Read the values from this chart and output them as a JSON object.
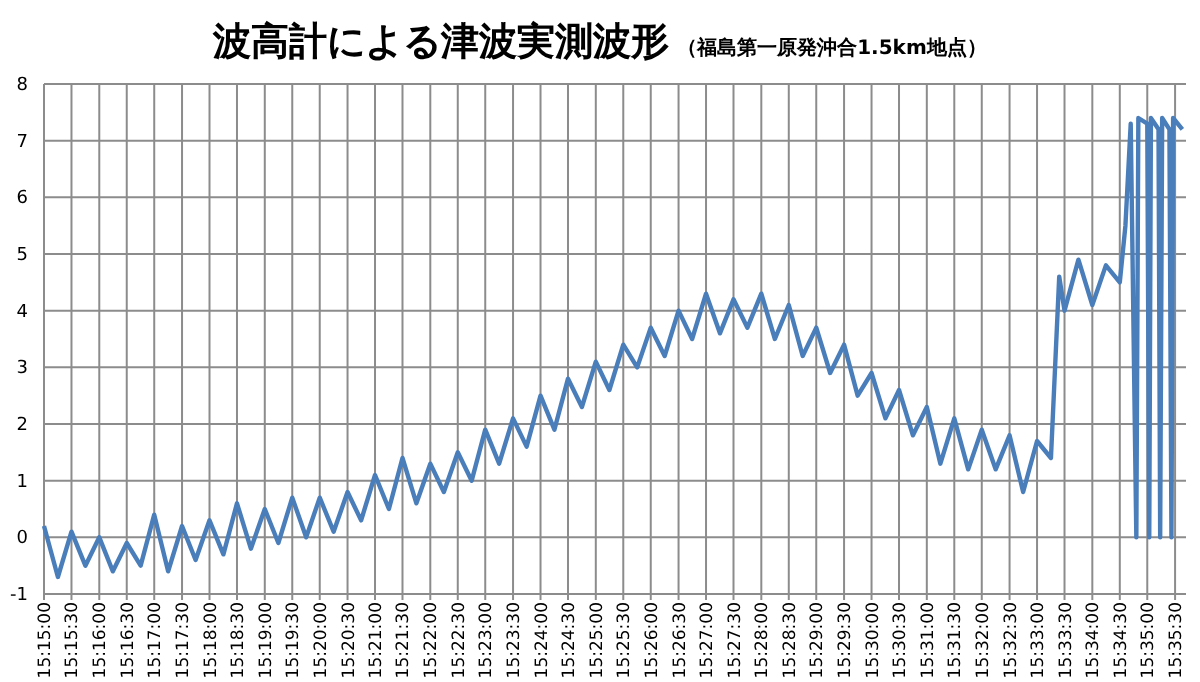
{
  "chart_data": {
    "type": "line",
    "title": "波高計による津波実測波形",
    "subtitle": "（福島第一原発沖合1.5km地点）",
    "x": [
      15.25,
      15.2542,
      15.2583,
      15.2625,
      15.2667,
      15.2708,
      15.275,
      15.2792,
      15.2833,
      15.2875,
      15.2917,
      15.2958,
      15.3,
      15.3042,
      15.3083,
      15.3125,
      15.3167,
      15.3208,
      15.325,
      15.3292,
      15.3333,
      15.3375,
      15.3417,
      15.3458,
      15.35,
      15.3542,
      15.3583,
      15.3625,
      15.3667,
      15.3708,
      15.375,
      15.3792,
      15.3833,
      15.3875,
      15.3917,
      15.3958,
      15.4,
      15.4042,
      15.4083,
      15.4125,
      15.4167,
      15.4208,
      15.425,
      15.4292,
      15.4333,
      15.4375,
      15.4417,
      15.4458,
      15.45,
      15.4542,
      15.4583,
      15.4625,
      15.4667,
      15.4708,
      15.475,
      15.4792,
      15.4833,
      15.4875,
      15.4917,
      15.4958,
      15.5,
      15.5042,
      15.5083,
      15.5125,
      15.5167,
      15.5208,
      15.525,
      15.5292,
      15.5333,
      15.5375,
      15.5417,
      15.5458,
      15.55,
      15.5542,
      15.5567,
      15.5583,
      15.5625,
      15.5667,
      15.5708,
      15.575,
      15.5767,
      15.5783,
      15.58,
      15.5806,
      15.5833,
      15.5839,
      15.5844,
      15.5867,
      15.5872,
      15.5878,
      15.59,
      15.5906,
      15.5911,
      15.5939
    ],
    "series": [
      {
        "color": "#4a7ebb",
        "values": [
          0.2,
          -0.7,
          0.1,
          -0.5,
          0.0,
          -0.6,
          -0.1,
          -0.5,
          0.4,
          -0.6,
          0.2,
          -0.4,
          0.3,
          -0.3,
          0.6,
          -0.2,
          0.5,
          -0.1,
          0.7,
          0.0,
          0.7,
          0.1,
          0.8,
          0.3,
          1.1,
          0.5,
          1.4,
          0.6,
          1.3,
          0.8,
          1.5,
          1.0,
          1.9,
          1.3,
          2.1,
          1.6,
          2.5,
          1.9,
          2.8,
          2.3,
          3.1,
          2.6,
          3.4,
          3.0,
          3.7,
          3.2,
          4.0,
          3.5,
          4.3,
          3.6,
          4.2,
          3.7,
          4.3,
          3.5,
          4.1,
          3.2,
          3.7,
          2.9,
          3.4,
          2.5,
          2.9,
          2.1,
          2.6,
          1.8,
          2.3,
          1.3,
          2.1,
          1.2,
          1.9,
          1.2,
          1.8,
          0.8,
          1.7,
          1.4,
          4.6,
          4.0,
          4.9,
          4.1,
          4.8,
          4.5,
          5.5,
          7.3,
          0,
          7.4,
          7.3,
          0,
          7.4,
          7.2,
          0,
          7.4,
          7.2,
          0,
          7.4,
          7.2
        ]
      }
    ],
    "xlim": [
      15.25,
      15.595
    ],
    "ylim": [
      -1,
      8
    ],
    "yticks": [
      -1,
      0,
      1,
      2,
      3,
      4,
      5,
      6,
      7,
      8
    ],
    "xticks": [
      {
        "value": 15.25,
        "label": "15:15:00"
      },
      {
        "value": 15.2583,
        "label": "15:15:30"
      },
      {
        "value": 15.2667,
        "label": "15:16:00"
      },
      {
        "value": 15.275,
        "label": "15:16:30"
      },
      {
        "value": 15.2833,
        "label": "15:17:00"
      },
      {
        "value": 15.2917,
        "label": "15:17:30"
      },
      {
        "value": 15.3,
        "label": "15:18:00"
      },
      {
        "value": 15.3083,
        "label": "15:18:30"
      },
      {
        "value": 15.3167,
        "label": "15:19:00"
      },
      {
        "value": 15.325,
        "label": "15:19:30"
      },
      {
        "value": 15.3333,
        "label": "15:20:00"
      },
      {
        "value": 15.3417,
        "label": "15:20:30"
      },
      {
        "value": 15.35,
        "label": "15:21:00"
      },
      {
        "value": 15.3583,
        "label": "15:21:30"
      },
      {
        "value": 15.3667,
        "label": "15:22:00"
      },
      {
        "value": 15.375,
        "label": "15:22:30"
      },
      {
        "value": 15.3833,
        "label": "15:23:00"
      },
      {
        "value": 15.3917,
        "label": "15:23:30"
      },
      {
        "value": 15.4,
        "label": "15:24:00"
      },
      {
        "value": 15.4083,
        "label": "15:24:30"
      },
      {
        "value": 15.4167,
        "label": "15:25:00"
      },
      {
        "value": 15.425,
        "label": "15:25:30"
      },
      {
        "value": 15.4333,
        "label": "15:26:00"
      },
      {
        "value": 15.4417,
        "label": "15:26:30"
      },
      {
        "value": 15.45,
        "label": "15:27:00"
      },
      {
        "value": 15.4583,
        "label": "15:27:30"
      },
      {
        "value": 15.4667,
        "label": "15:28:00"
      },
      {
        "value": 15.475,
        "label": "15:28:30"
      },
      {
        "value": 15.4833,
        "label": "15:29:00"
      },
      {
        "value": 15.4917,
        "label": "15:29:30"
      },
      {
        "value": 15.5,
        "label": "15:30:00"
      },
      {
        "value": 15.5083,
        "label": "15:30:30"
      },
      {
        "value": 15.5167,
        "label": "15:31:00"
      },
      {
        "value": 15.525,
        "label": "15:31:30"
      },
      {
        "value": 15.5333,
        "label": "15:32:00"
      },
      {
        "value": 15.5417,
        "label": "15:32:30"
      },
      {
        "value": 15.55,
        "label": "15:33:00"
      },
      {
        "value": 15.5583,
        "label": "15:33:30"
      },
      {
        "value": 15.5667,
        "label": "15:34:00"
      },
      {
        "value": 15.575,
        "label": "15:34:30"
      },
      {
        "value": 15.5833,
        "label": "15:35:00"
      },
      {
        "value": 15.5917,
        "label": "15:35:30"
      }
    ],
    "grid": true
  }
}
